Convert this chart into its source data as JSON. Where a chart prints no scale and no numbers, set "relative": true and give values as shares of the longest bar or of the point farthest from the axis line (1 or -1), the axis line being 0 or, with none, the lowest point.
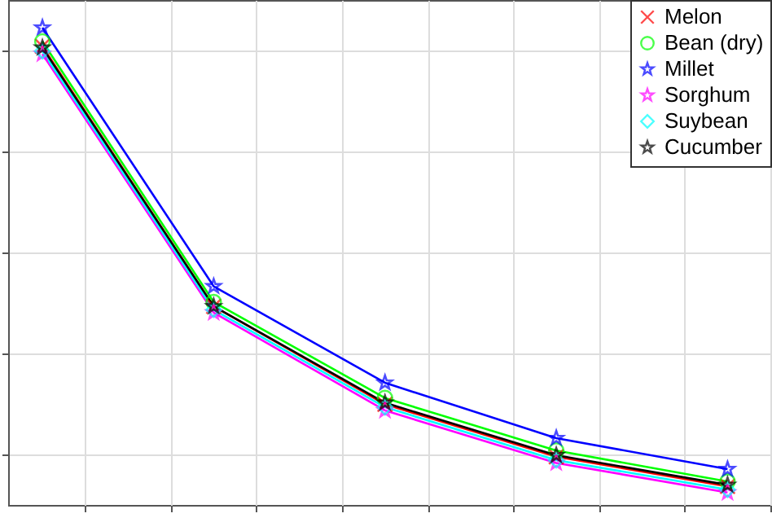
{
  "chart_data": {
    "type": "line",
    "relative": true,
    "grid": true,
    "legend": "top right",
    "line_style": "solid",
    "categories": [
      null,
      null,
      null,
      null,
      null
    ],
    "series": [
      {
        "name": "Melon",
        "color": "#ff0000",
        "marker": "cross",
        "values": [
          0.961,
          0.416,
          0.211,
          0.101,
          0.039
        ]
      },
      {
        "name": "Bean (dry)",
        "color": "#00ff00",
        "marker": "circle",
        "values": [
          0.971,
          0.425,
          0.224,
          0.114,
          0.049
        ]
      },
      {
        "name": "Millet",
        "color": "#0000ff",
        "marker": "star",
        "values": [
          1.0,
          0.458,
          0.256,
          0.14,
          0.075
        ]
      },
      {
        "name": "Sorghum",
        "color": "#ff00ff",
        "marker": "star",
        "values": [
          0.945,
          0.403,
          0.198,
          0.088,
          0.026
        ]
      },
      {
        "name": "Suybean",
        "color": "#00ffff",
        "marker": "diamond",
        "values": [
          0.951,
          0.409,
          0.205,
          0.094,
          0.032
        ]
      },
      {
        "name": "Cucumber",
        "color": "#000000",
        "marker": "star",
        "values": [
          0.958,
          0.416,
          0.214,
          0.104,
          0.042
        ]
      }
    ]
  }
}
